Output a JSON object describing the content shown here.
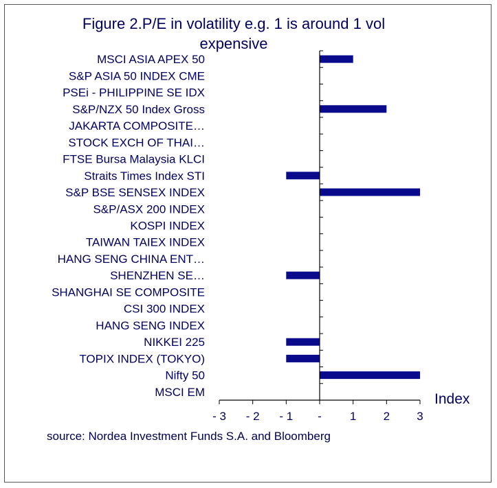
{
  "chart_data": {
    "type": "bar",
    "orientation": "horizontal",
    "title_line1": "Figure 2.P/E in volatility e.g. 1 is around  1 vol",
    "title_line2": "expensive",
    "xlabel": "Index",
    "source": "source: Nordea Investment Funds S.A. and Bloomberg",
    "xlim": [
      -3,
      3
    ],
    "tick_values": [
      -3,
      -2,
      -1,
      0,
      1,
      2,
      3
    ],
    "tick_labels": [
      "- 3",
      "- 2",
      "- 1",
      "-",
      "1",
      "2",
      "3"
    ],
    "categories": [
      "MSCI ASIA APEX 50",
      "S&P ASIA 50 INDEX CME",
      "PSEi - PHILIPPINE SE IDX",
      "S&P/NZX 50 Index Gross",
      "JAKARTA COMPOSITE…",
      "STOCK EXCH OF THAI…",
      "FTSE Bursa Malaysia KLCI",
      "Straits Times Index STI",
      "S&P BSE SENSEX INDEX",
      "S&P/ASX 200 INDEX",
      "KOSPI INDEX",
      "TAIWAN TAIEX INDEX",
      "HANG SENG CHINA ENT…",
      "SHENZHEN SE…",
      "SHANGHAI SE COMPOSITE",
      "CSI 300 INDEX",
      "HANG SENG INDEX",
      "NIKKEI 225",
      "TOPIX INDEX (TOKYO)",
      "Nifty 50",
      "MSCI EM"
    ],
    "values": [
      1,
      0,
      0,
      2,
      0,
      0,
      0,
      -1,
      3,
      0,
      0,
      0,
      0,
      -1,
      0,
      0,
      0,
      -1,
      -1,
      3,
      0
    ],
    "bar_color": "#0a0a8c",
    "axis_color": "#000000",
    "grid": false,
    "legend": "none"
  }
}
